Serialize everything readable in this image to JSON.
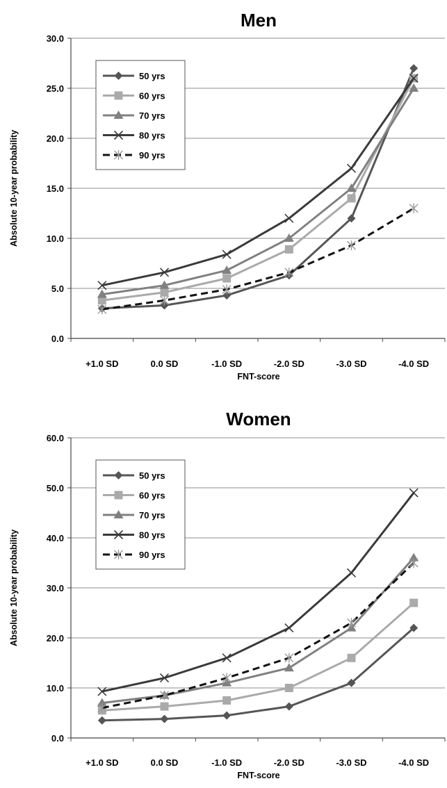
{
  "chart_data": [
    {
      "type": "line",
      "title": "Men",
      "xlabel": "FNT-score",
      "ylabel": "Absolute 10-year probability",
      "categories": [
        "+1.0 SD",
        "0.0 SD",
        "-1.0 SD",
        "-2.0 SD",
        "-3.0 SD",
        "-4.0 SD"
      ],
      "ylim": [
        0,
        30
      ],
      "yticks": [
        "0.0",
        "5.0",
        "10.0",
        "15.0",
        "20.0",
        "25.0",
        "30.0"
      ],
      "grid": true,
      "legend_position": "top-left",
      "series": [
        {
          "name": "50 yrs",
          "values": [
            3.0,
            3.3,
            4.3,
            6.3,
            12.0,
            27.0
          ],
          "color": "#555555",
          "marker": "diamond",
          "dash": false
        },
        {
          "name": "60 yrs",
          "values": [
            3.8,
            4.6,
            6.0,
            8.9,
            14.0,
            26.0
          ],
          "color": "#aaaaaa",
          "marker": "square",
          "dash": false
        },
        {
          "name": "70 yrs",
          "values": [
            4.4,
            5.3,
            6.8,
            10.0,
            15.0,
            25.0
          ],
          "color": "#808080",
          "marker": "triangle",
          "dash": false
        },
        {
          "name": "80 yrs",
          "values": [
            5.3,
            6.6,
            8.4,
            12.0,
            17.0,
            26.0
          ],
          "color": "#3a3a3a",
          "marker": "x",
          "dash": false
        },
        {
          "name": "90 yrs",
          "values": [
            2.9,
            3.8,
            4.9,
            6.6,
            9.3,
            13.0
          ],
          "color": "#111111",
          "marker": "star",
          "dash": true
        }
      ]
    },
    {
      "type": "line",
      "title": "Women",
      "xlabel": "FNT-score",
      "ylabel": "Absolute 10-year probability",
      "categories": [
        "+1.0 SD",
        "0.0 SD",
        "-1.0 SD",
        "-2.0 SD",
        "-3.0 SD",
        "-4.0 SD"
      ],
      "ylim": [
        0,
        60
      ],
      "yticks": [
        "0.0",
        "10.0",
        "20.0",
        "30.0",
        "40.0",
        "50.0",
        "60.0"
      ],
      "grid": true,
      "legend_position": "top-left",
      "series": [
        {
          "name": "50 yrs",
          "values": [
            3.5,
            3.8,
            4.5,
            6.3,
            11.0,
            22.0
          ],
          "color": "#555555",
          "marker": "diamond",
          "dash": false
        },
        {
          "name": "60 yrs",
          "values": [
            5.5,
            6.3,
            7.5,
            10.0,
            16.0,
            27.0
          ],
          "color": "#aaaaaa",
          "marker": "square",
          "dash": false
        },
        {
          "name": "70 yrs",
          "values": [
            7.0,
            8.5,
            11.0,
            14.0,
            22.0,
            36.0
          ],
          "color": "#808080",
          "marker": "triangle",
          "dash": false
        },
        {
          "name": "80 yrs",
          "values": [
            9.3,
            12.0,
            16.0,
            22.0,
            33.0,
            49.0
          ],
          "color": "#3a3a3a",
          "marker": "x",
          "dash": false
        },
        {
          "name": "90 yrs",
          "values": [
            6.0,
            8.5,
            12.0,
            16.0,
            23.0,
            35.0
          ],
          "color": "#111111",
          "marker": "star",
          "dash": true
        }
      ]
    }
  ]
}
